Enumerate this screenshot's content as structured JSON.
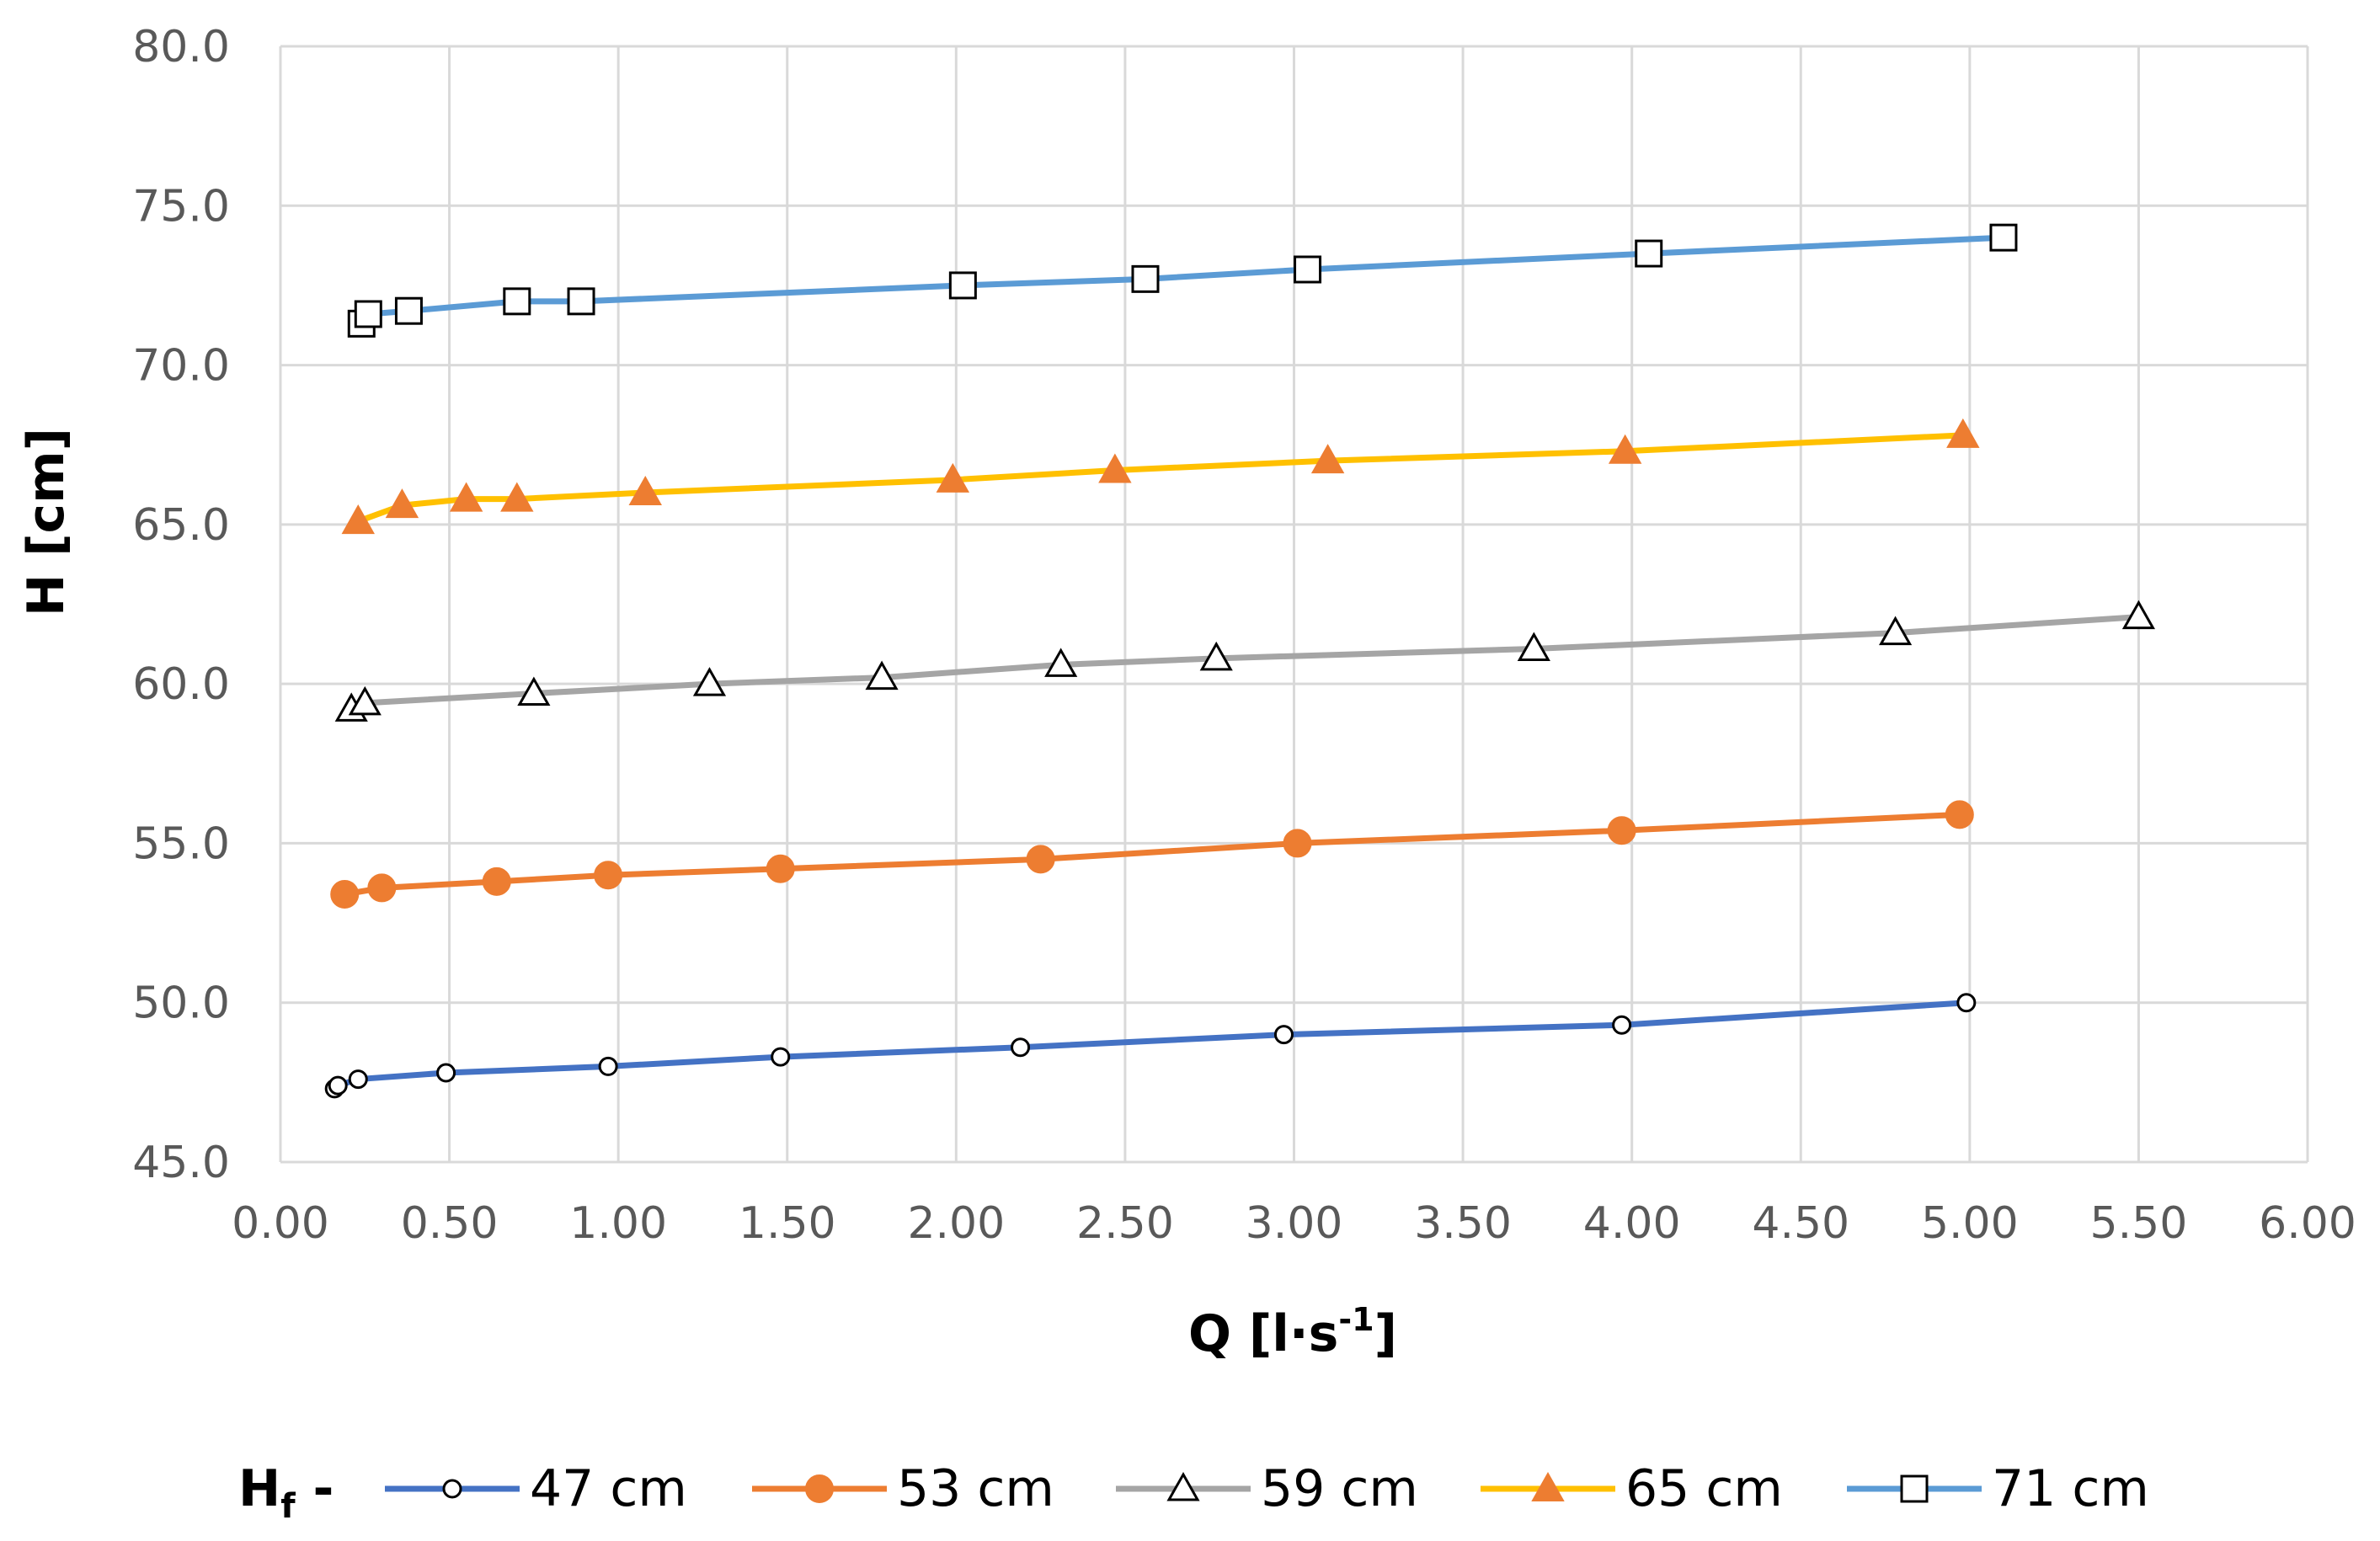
{
  "chart_data": {
    "type": "line",
    "title": "",
    "xlabel": "Q [l·s",
    "xlabel_sup": "-1",
    "xlabel_end": "]",
    "ylabel": "H [cm]",
    "xlim": [
      0,
      6
    ],
    "ylim": [
      45,
      80
    ],
    "x_ticks": [
      "0.00",
      "0.50",
      "1.00",
      "1.50",
      "2.00",
      "2.50",
      "3.00",
      "3.50",
      "4.00",
      "4.50",
      "5.00",
      "5.50",
      "6.00"
    ],
    "y_ticks": [
      "45.0",
      "50.0",
      "55.0",
      "60.0",
      "65.0",
      "70.0",
      "75.0",
      "80.0"
    ],
    "grid": true,
    "legend_position": "bottom",
    "legend_title": "H",
    "legend_title_sub": "f",
    "legend_title_dash": " -",
    "series": [
      {
        "name": "47 cm",
        "color": "#4472C4",
        "marker": "small-circle",
        "x": [
          0.16,
          0.17,
          0.23,
          0.49,
          0.97,
          1.48,
          2.19,
          2.97,
          3.97,
          4.99
        ],
        "y": [
          47.3,
          47.4,
          47.6,
          47.8,
          48.0,
          48.3,
          48.6,
          49.0,
          49.3,
          50.0
        ]
      },
      {
        "name": "53 cm",
        "color": "#ED7D31",
        "marker": "filled-circle",
        "x": [
          0.19,
          0.3,
          0.64,
          0.97,
          1.48,
          2.25,
          3.01,
          3.97,
          4.97
        ],
        "y": [
          53.4,
          53.6,
          53.8,
          54.0,
          54.2,
          54.5,
          55.0,
          55.4,
          55.9
        ]
      },
      {
        "name": "59 cm",
        "color": "#A5A5A5",
        "marker": "hollow-triangle",
        "x": [
          0.21,
          0.25,
          0.75,
          1.27,
          1.78,
          2.31,
          2.77,
          3.71,
          4.78,
          5.5
        ],
        "y": [
          59.2,
          59.4,
          59.7,
          60.0,
          60.2,
          60.6,
          60.8,
          61.1,
          61.6,
          62.1
        ]
      },
      {
        "name": "65 cm",
        "color": "#FFC000",
        "marker": "filled-triangle",
        "marker_color": "#ED7D31",
        "x": [
          0.23,
          0.36,
          0.55,
          0.7,
          1.08,
          1.99,
          2.47,
          3.1,
          3.98,
          4.98
        ],
        "y": [
          65.1,
          65.6,
          65.8,
          65.8,
          66.0,
          66.4,
          66.7,
          67.0,
          67.3,
          67.8
        ]
      },
      {
        "name": "71 cm",
        "color": "#5B9BD5",
        "marker": "hollow-square",
        "x": [
          0.24,
          0.26,
          0.38,
          0.7,
          0.89,
          2.02,
          2.56,
          3.04,
          4.05,
          5.1
        ],
        "y": [
          71.3,
          71.6,
          71.7,
          72.0,
          72.0,
          72.5,
          72.7,
          73.0,
          73.5,
          74.0
        ]
      }
    ]
  }
}
